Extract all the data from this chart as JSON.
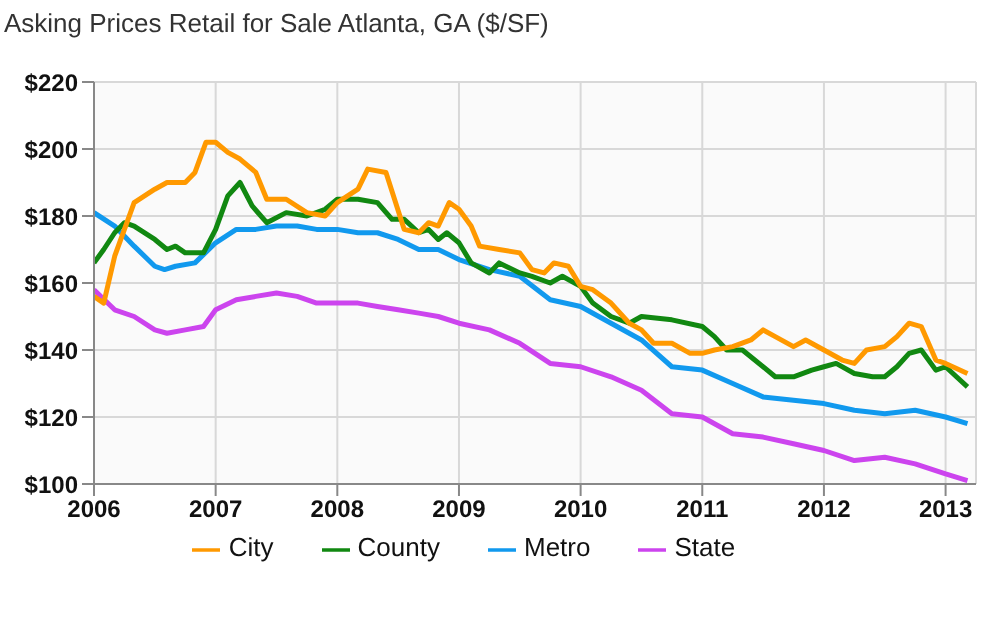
{
  "chart_data": {
    "type": "line",
    "title": "Asking Prices Retail for Sale Atlanta, GA ($/SF)",
    "xlim": [
      2006,
      2013.25
    ],
    "xticks": [
      2006,
      2007,
      2008,
      2009,
      2010,
      2011,
      2012,
      2013
    ],
    "ylim": [
      100,
      220
    ],
    "yticks": [
      {
        "value": 100,
        "label": "$100"
      },
      {
        "value": 120,
        "label": "$120"
      },
      {
        "value": 140,
        "label": "$140"
      },
      {
        "value": 160,
        "label": "$160"
      },
      {
        "value": 180,
        "label": "$180"
      },
      {
        "value": 200,
        "label": "$200"
      },
      {
        "value": 220,
        "label": "$220"
      }
    ],
    "grid": true,
    "legend": "bottom",
    "marker": "none",
    "line_style": "solid",
    "series": [
      {
        "name": "State",
        "color": "#cc44ee",
        "x": [
          2006,
          2006.17,
          2006.33,
          2006.5,
          2006.6,
          2006.75,
          2006.9,
          2007,
          2007.17,
          2007.33,
          2007.5,
          2007.67,
          2007.83,
          2008,
          2008.17,
          2008.33,
          2008.5,
          2008.67,
          2008.83,
          2009,
          2009.25,
          2009.5,
          2009.75,
          2010,
          2010.25,
          2010.5,
          2010.75,
          2011,
          2011.25,
          2011.5,
          2011.75,
          2012,
          2012.25,
          2012.5,
          2012.75,
          2013,
          2013.18
        ],
        "values": [
          158,
          152,
          150,
          146,
          145,
          146,
          147,
          152,
          155,
          156,
          157,
          156,
          154,
          154,
          154,
          153,
          152,
          151,
          150,
          148,
          146,
          142,
          136,
          135,
          132,
          128,
          121,
          120,
          115,
          114,
          112,
          110,
          107,
          108,
          106,
          103,
          101
        ]
      },
      {
        "name": "Metro",
        "color": "#1199ee",
        "x": [
          2006,
          2006.17,
          2006.33,
          2006.5,
          2006.58,
          2006.67,
          2006.83,
          2007,
          2007.17,
          2007.33,
          2007.5,
          2007.67,
          2007.83,
          2008,
          2008.17,
          2008.33,
          2008.5,
          2008.67,
          2008.83,
          2009,
          2009.25,
          2009.5,
          2009.75,
          2010,
          2010.25,
          2010.5,
          2010.75,
          2011,
          2011.25,
          2011.5,
          2011.75,
          2012,
          2012.25,
          2012.5,
          2012.75,
          2013,
          2013.18
        ],
        "values": [
          181,
          177,
          171,
          165,
          164,
          165,
          166,
          172,
          176,
          176,
          177,
          177,
          176,
          176,
          175,
          175,
          173,
          170,
          170,
          167,
          164,
          162,
          155,
          153,
          148,
          143,
          135,
          134,
          130,
          126,
          125,
          124,
          122,
          121,
          122,
          120,
          118
        ]
      },
      {
        "name": "County",
        "color": "#118811",
        "x": [
          2006,
          2006.08,
          2006.17,
          2006.25,
          2006.33,
          2006.5,
          2006.6,
          2006.67,
          2006.75,
          2006.9,
          2007,
          2007.1,
          2007.2,
          2007.3,
          2007.42,
          2007.58,
          2007.75,
          2007.9,
          2008,
          2008.17,
          2008.33,
          2008.45,
          2008.55,
          2008.67,
          2008.75,
          2008.83,
          2008.9,
          2009,
          2009.1,
          2009.25,
          2009.33,
          2009.5,
          2009.6,
          2009.75,
          2009.85,
          2010,
          2010.1,
          2010.25,
          2010.4,
          2010.5,
          2010.75,
          2011,
          2011.1,
          2011.2,
          2011.33,
          2011.5,
          2011.6,
          2011.75,
          2011.9,
          2012,
          2012.1,
          2012.25,
          2012.4,
          2012.5,
          2012.6,
          2012.7,
          2012.8,
          2012.92,
          2013,
          2013.18
        ],
        "values": [
          166,
          170,
          175,
          178,
          177,
          173,
          170,
          171,
          169,
          169,
          176,
          186,
          190,
          183,
          178,
          181,
          180,
          182,
          185,
          185,
          184,
          179,
          179,
          175,
          176,
          173,
          175,
          172,
          166,
          163,
          166,
          163,
          162,
          160,
          162,
          159,
          154,
          150,
          148,
          150,
          149,
          147,
          144,
          140,
          140,
          135,
          132,
          132,
          134,
          135,
          136,
          133,
          132,
          132,
          135,
          139,
          140,
          134,
          135,
          129
        ]
      },
      {
        "name": "City",
        "color": "#ff9900",
        "x": [
          2006,
          2006.08,
          2006.17,
          2006.33,
          2006.5,
          2006.6,
          2006.75,
          2006.83,
          2006.92,
          2007,
          2007.1,
          2007.2,
          2007.33,
          2007.42,
          2007.58,
          2007.75,
          2007.9,
          2008,
          2008.17,
          2008.25,
          2008.4,
          2008.55,
          2008.67,
          2008.75,
          2008.83,
          2008.92,
          2009,
          2009.1,
          2009.17,
          2009.33,
          2009.5,
          2009.6,
          2009.7,
          2009.78,
          2009.9,
          2010,
          2010.1,
          2010.25,
          2010.4,
          2010.5,
          2010.6,
          2010.75,
          2010.9,
          2011,
          2011.1,
          2011.25,
          2011.4,
          2011.5,
          2011.6,
          2011.75,
          2011.85,
          2012,
          2012.15,
          2012.25,
          2012.35,
          2012.5,
          2012.6,
          2012.7,
          2012.8,
          2012.92,
          2013,
          2013.18
        ],
        "values": [
          156,
          154,
          168,
          184,
          188,
          190,
          190,
          193,
          202,
          202,
          199,
          197,
          193,
          185,
          185,
          181,
          180,
          184,
          188,
          194,
          193,
          176,
          175,
          178,
          177,
          184,
          182,
          177,
          171,
          170,
          169,
          164,
          163,
          166,
          165,
          159,
          158,
          154,
          148,
          146,
          142,
          142,
          139,
          139,
          140,
          141,
          143,
          146,
          144,
          141,
          143,
          140,
          137,
          136,
          140,
          141,
          144,
          148,
          147,
          137,
          136,
          133
        ]
      }
    ]
  }
}
